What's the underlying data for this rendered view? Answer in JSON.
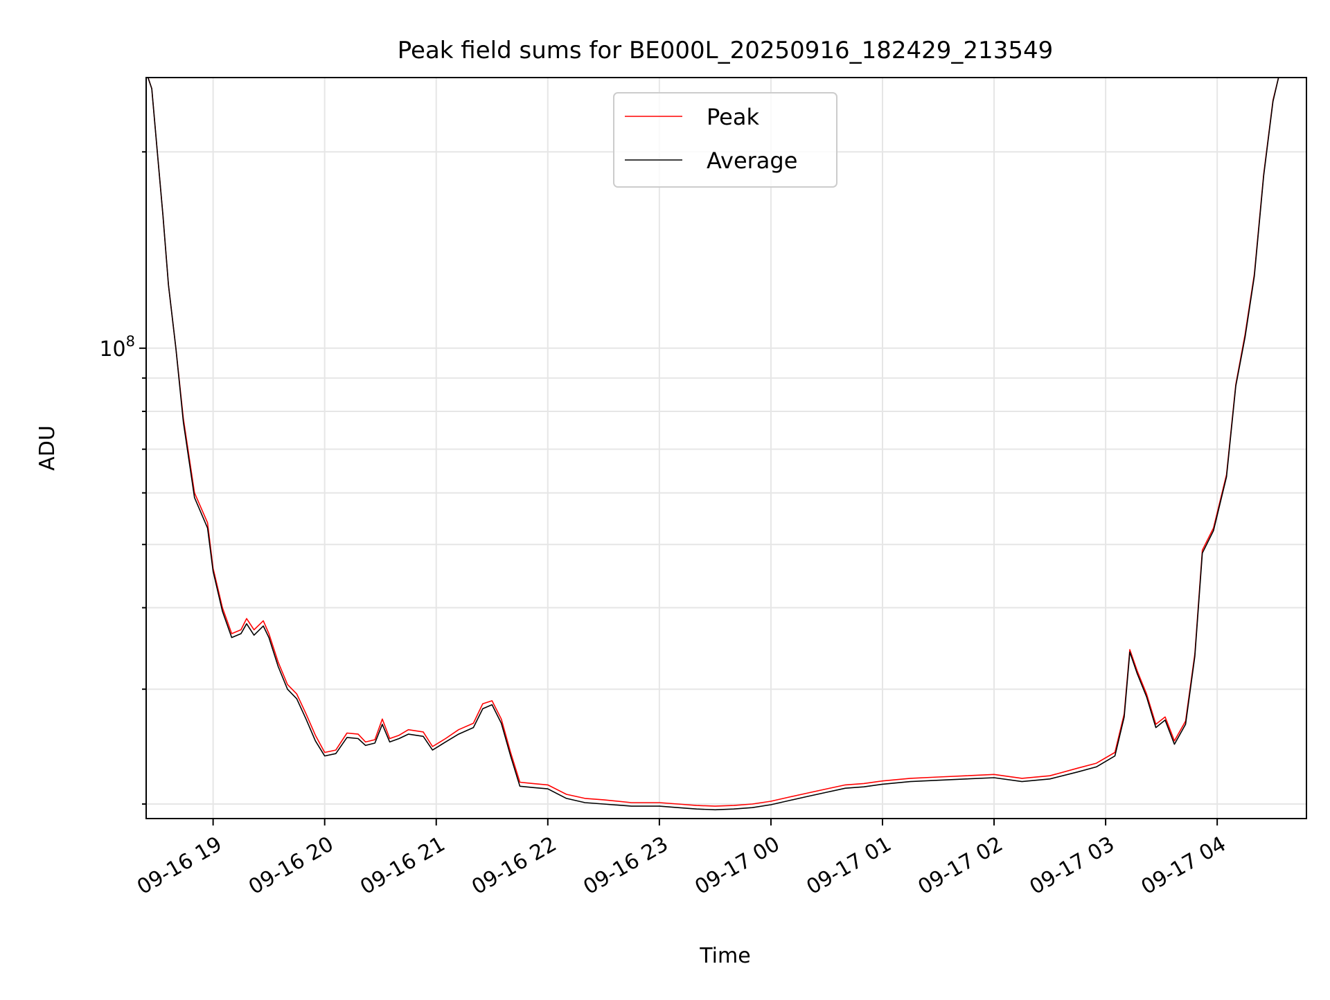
{
  "chart_data": {
    "type": "line",
    "title": "Peak field sums for BE000L_20250916_182429_213549",
    "xlabel": "Time",
    "ylabel": "ADU",
    "y_scale": "log",
    "grid": true,
    "legend_position": "top-center",
    "x_tick_labels": [
      "09-16 19",
      "09-16 20",
      "09-16 21",
      "09-16 22",
      "09-16 23",
      "09-17 00",
      "09-17 01",
      "09-17 02",
      "09-17 03",
      "09-17 04"
    ],
    "y_tick_labels": [
      {
        "base": "10",
        "exponent": "8"
      }
    ],
    "x_range": [
      "2025-09-16 18:24",
      "2025-09-17 04:48"
    ],
    "y_range": [
      19000000,
      260000000
    ],
    "colors": {
      "peak": "#ff0000",
      "average": "#000000",
      "grid": "#e6e6e6"
    },
    "series": [
      {
        "name": "Peak",
        "color": "#ff0000",
        "points": [
          [
            "2025-09-16 18:25",
            260000000
          ],
          [
            "2025-09-16 18:27",
            250000000
          ],
          [
            "2025-09-16 18:30",
            200000000
          ],
          [
            "2025-09-16 18:33",
            160000000
          ],
          [
            "2025-09-16 18:36",
            125000000
          ],
          [
            "2025-09-16 18:40",
            100000000
          ],
          [
            "2025-09-16 18:44",
            78000000
          ],
          [
            "2025-09-16 18:50",
            60000000
          ],
          [
            "2025-09-16 18:57",
            54000000
          ],
          [
            "2025-09-16 19:00",
            46000000
          ],
          [
            "2025-09-16 19:05",
            40000000
          ],
          [
            "2025-09-16 19:10",
            36500000
          ],
          [
            "2025-09-16 19:15",
            37000000
          ],
          [
            "2025-09-16 19:18",
            38500000
          ],
          [
            "2025-09-16 19:22",
            37000000
          ],
          [
            "2025-09-16 19:27",
            38200000
          ],
          [
            "2025-09-16 19:30",
            36500000
          ],
          [
            "2025-09-16 19:35",
            33000000
          ],
          [
            "2025-09-16 19:40",
            30500000
          ],
          [
            "2025-09-16 19:45",
            29500000
          ],
          [
            "2025-09-16 19:50",
            27500000
          ],
          [
            "2025-09-16 19:55",
            25500000
          ],
          [
            "2025-09-16 20:00",
            24000000
          ],
          [
            "2025-09-16 20:06",
            24200000
          ],
          [
            "2025-09-16 20:12",
            25700000
          ],
          [
            "2025-09-16 20:18",
            25600000
          ],
          [
            "2025-09-16 20:22",
            24900000
          ],
          [
            "2025-09-16 20:27",
            25100000
          ],
          [
            "2025-09-16 20:31",
            27000000
          ],
          [
            "2025-09-16 20:35",
            25200000
          ],
          [
            "2025-09-16 20:40",
            25500000
          ],
          [
            "2025-09-16 20:45",
            26000000
          ],
          [
            "2025-09-16 20:53",
            25800000
          ],
          [
            "2025-09-16 20:58",
            24500000
          ],
          [
            "2025-09-16 21:05",
            25200000
          ],
          [
            "2025-09-16 21:12",
            26000000
          ],
          [
            "2025-09-16 21:20",
            26600000
          ],
          [
            "2025-09-16 21:25",
            28500000
          ],
          [
            "2025-09-16 21:30",
            28800000
          ],
          [
            "2025-09-16 21:35",
            27000000
          ],
          [
            "2025-09-16 21:40",
            24000000
          ],
          [
            "2025-09-16 21:45",
            21600000
          ],
          [
            "2025-09-16 21:52",
            21500000
          ],
          [
            "2025-09-16 22:00",
            21400000
          ],
          [
            "2025-09-16 22:10",
            20700000
          ],
          [
            "2025-09-16 22:20",
            20400000
          ],
          [
            "2025-09-16 22:30",
            20300000
          ],
          [
            "2025-09-16 22:45",
            20100000
          ],
          [
            "2025-09-16 23:00",
            20100000
          ],
          [
            "2025-09-16 23:10",
            20000000
          ],
          [
            "2025-09-16 23:20",
            19900000
          ],
          [
            "2025-09-16 23:30",
            19850000
          ],
          [
            "2025-09-16 23:40",
            19900000
          ],
          [
            "2025-09-16 23:50",
            20000000
          ],
          [
            "2025-09-17 00:00",
            20200000
          ],
          [
            "2025-09-17 00:10",
            20500000
          ],
          [
            "2025-09-17 00:20",
            20800000
          ],
          [
            "2025-09-17 00:30",
            21100000
          ],
          [
            "2025-09-17 00:40",
            21400000
          ],
          [
            "2025-09-17 00:50",
            21500000
          ],
          [
            "2025-09-17 01:00",
            21700000
          ],
          [
            "2025-09-17 01:15",
            21900000
          ],
          [
            "2025-09-17 01:30",
            22000000
          ],
          [
            "2025-09-17 01:45",
            22100000
          ],
          [
            "2025-09-17 02:00",
            22200000
          ],
          [
            "2025-09-17 02:15",
            21900000
          ],
          [
            "2025-09-17 02:30",
            22100000
          ],
          [
            "2025-09-17 02:45",
            22700000
          ],
          [
            "2025-09-17 02:55",
            23100000
          ],
          [
            "2025-09-17 03:05",
            24000000
          ],
          [
            "2025-09-17 03:10",
            27500000
          ],
          [
            "2025-09-17 03:13",
            34500000
          ],
          [
            "2025-09-17 03:17",
            32000000
          ],
          [
            "2025-09-17 03:22",
            29500000
          ],
          [
            "2025-09-17 03:27",
            26500000
          ],
          [
            "2025-09-17 03:32",
            27200000
          ],
          [
            "2025-09-17 03:37",
            25000000
          ],
          [
            "2025-09-17 03:43",
            26800000
          ],
          [
            "2025-09-17 03:48",
            34000000
          ],
          [
            "2025-09-17 03:52",
            49000000
          ],
          [
            "2025-09-17 03:58",
            53000000
          ],
          [
            "2025-09-17 04:05",
            64000000
          ],
          [
            "2025-09-17 04:10",
            88000000
          ],
          [
            "2025-09-17 04:15",
            105000000
          ],
          [
            "2025-09-17 04:20",
            130000000
          ],
          [
            "2025-09-17 04:25",
            185000000
          ],
          [
            "2025-09-17 04:30",
            240000000
          ],
          [
            "2025-09-17 04:33",
            260000000
          ]
        ]
      },
      {
        "name": "Average",
        "color": "#000000",
        "points": [
          [
            "2025-09-16 18:25",
            260000000
          ],
          [
            "2025-09-16 18:27",
            250000000
          ],
          [
            "2025-09-16 18:30",
            200000000
          ],
          [
            "2025-09-16 18:33",
            160000000
          ],
          [
            "2025-09-16 18:36",
            125000000
          ],
          [
            "2025-09-16 18:40",
            100000000
          ],
          [
            "2025-09-16 18:44",
            77000000
          ],
          [
            "2025-09-16 18:50",
            59000000
          ],
          [
            "2025-09-16 18:57",
            53000000
          ],
          [
            "2025-09-16 19:00",
            45500000
          ],
          [
            "2025-09-16 19:05",
            39500000
          ],
          [
            "2025-09-16 19:10",
            36000000
          ],
          [
            "2025-09-16 19:15",
            36500000
          ],
          [
            "2025-09-16 19:18",
            37800000
          ],
          [
            "2025-09-16 19:22",
            36300000
          ],
          [
            "2025-09-16 19:27",
            37500000
          ],
          [
            "2025-09-16 19:30",
            36000000
          ],
          [
            "2025-09-16 19:35",
            32500000
          ],
          [
            "2025-09-16 19:40",
            30000000
          ],
          [
            "2025-09-16 19:45",
            29000000
          ],
          [
            "2025-09-16 19:50",
            27000000
          ],
          [
            "2025-09-16 19:55",
            25000000
          ],
          [
            "2025-09-16 20:00",
            23700000
          ],
          [
            "2025-09-16 20:06",
            23900000
          ],
          [
            "2025-09-16 20:12",
            25300000
          ],
          [
            "2025-09-16 20:18",
            25200000
          ],
          [
            "2025-09-16 20:22",
            24600000
          ],
          [
            "2025-09-16 20:27",
            24800000
          ],
          [
            "2025-09-16 20:31",
            26500000
          ],
          [
            "2025-09-16 20:35",
            24900000
          ],
          [
            "2025-09-16 20:40",
            25200000
          ],
          [
            "2025-09-16 20:45",
            25600000
          ],
          [
            "2025-09-16 20:53",
            25400000
          ],
          [
            "2025-09-16 20:58",
            24200000
          ],
          [
            "2025-09-16 21:05",
            24900000
          ],
          [
            "2025-09-16 21:12",
            25600000
          ],
          [
            "2025-09-16 21:20",
            26200000
          ],
          [
            "2025-09-16 21:25",
            28000000
          ],
          [
            "2025-09-16 21:30",
            28400000
          ],
          [
            "2025-09-16 21:35",
            26600000
          ],
          [
            "2025-09-16 21:40",
            23700000
          ],
          [
            "2025-09-16 21:45",
            21300000
          ],
          [
            "2025-09-16 21:52",
            21200000
          ],
          [
            "2025-09-16 22:00",
            21100000
          ],
          [
            "2025-09-16 22:10",
            20400000
          ],
          [
            "2025-09-16 22:20",
            20100000
          ],
          [
            "2025-09-16 22:30",
            20000000
          ],
          [
            "2025-09-16 22:45",
            19850000
          ],
          [
            "2025-09-16 23:00",
            19850000
          ],
          [
            "2025-09-16 23:10",
            19750000
          ],
          [
            "2025-09-16 23:20",
            19650000
          ],
          [
            "2025-09-16 23:30",
            19600000
          ],
          [
            "2025-09-16 23:40",
            19650000
          ],
          [
            "2025-09-16 23:50",
            19750000
          ],
          [
            "2025-09-17 00:00",
            19950000
          ],
          [
            "2025-09-17 00:10",
            20250000
          ],
          [
            "2025-09-17 00:20",
            20550000
          ],
          [
            "2025-09-17 00:30",
            20850000
          ],
          [
            "2025-09-17 00:40",
            21150000
          ],
          [
            "2025-09-17 00:50",
            21250000
          ],
          [
            "2025-09-17 01:00",
            21450000
          ],
          [
            "2025-09-17 01:15",
            21650000
          ],
          [
            "2025-09-17 01:30",
            21750000
          ],
          [
            "2025-09-17 01:45",
            21850000
          ],
          [
            "2025-09-17 02:00",
            21950000
          ],
          [
            "2025-09-17 02:15",
            21650000
          ],
          [
            "2025-09-17 02:30",
            21850000
          ],
          [
            "2025-09-17 02:45",
            22400000
          ],
          [
            "2025-09-17 02:55",
            22800000
          ],
          [
            "2025-09-17 03:05",
            23700000
          ],
          [
            "2025-09-17 03:10",
            27200000
          ],
          [
            "2025-09-17 03:13",
            34200000
          ],
          [
            "2025-09-17 03:17",
            31700000
          ],
          [
            "2025-09-17 03:22",
            29200000
          ],
          [
            "2025-09-17 03:27",
            26200000
          ],
          [
            "2025-09-17 03:32",
            26900000
          ],
          [
            "2025-09-17 03:37",
            24700000
          ],
          [
            "2025-09-17 03:43",
            26500000
          ],
          [
            "2025-09-17 03:48",
            33700000
          ],
          [
            "2025-09-17 03:52",
            48500000
          ],
          [
            "2025-09-17 03:58",
            52500000
          ],
          [
            "2025-09-17 04:05",
            63500000
          ],
          [
            "2025-09-17 04:10",
            87500000
          ],
          [
            "2025-09-17 04:15",
            104000000
          ],
          [
            "2025-09-17 04:20",
            129000000
          ],
          [
            "2025-09-17 04:25",
            184000000
          ],
          [
            "2025-09-17 04:30",
            239000000
          ],
          [
            "2025-09-17 04:33",
            260000000
          ]
        ]
      }
    ]
  }
}
